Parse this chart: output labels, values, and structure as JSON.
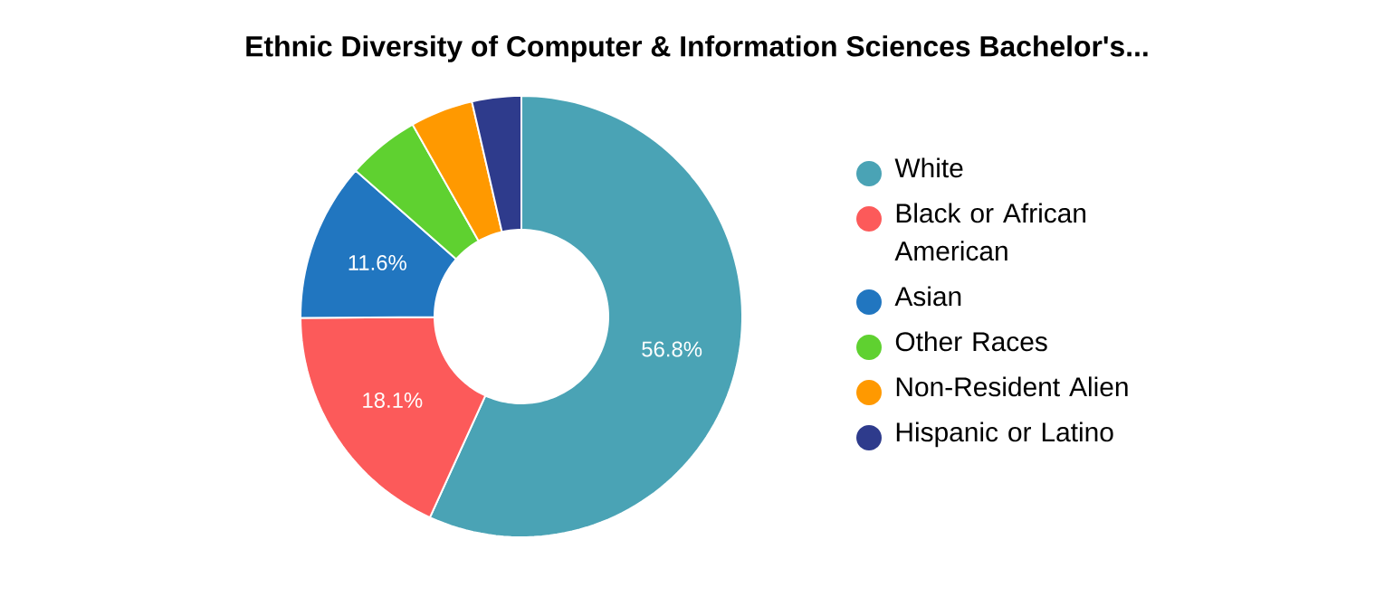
{
  "chart_data": {
    "type": "donut",
    "title": "Ethnic Diversity of Computer & Information Sciences Bachelor's...",
    "categories": [
      "White",
      "Black or African American",
      "Asian",
      "Other Races",
      "Non-Resident Alien",
      "Hispanic or Latino"
    ],
    "values": [
      56.8,
      18.1,
      11.6,
      5.3,
      4.6,
      3.6
    ],
    "colors": [
      "#4aa3b5",
      "#fc5a5a",
      "#2176c0",
      "#5fd130",
      "#ff9900",
      "#2e3b8c"
    ],
    "value_labels": [
      "56.8%",
      "18.1%",
      "11.6%",
      null,
      null,
      null
    ],
    "legend": "right"
  }
}
